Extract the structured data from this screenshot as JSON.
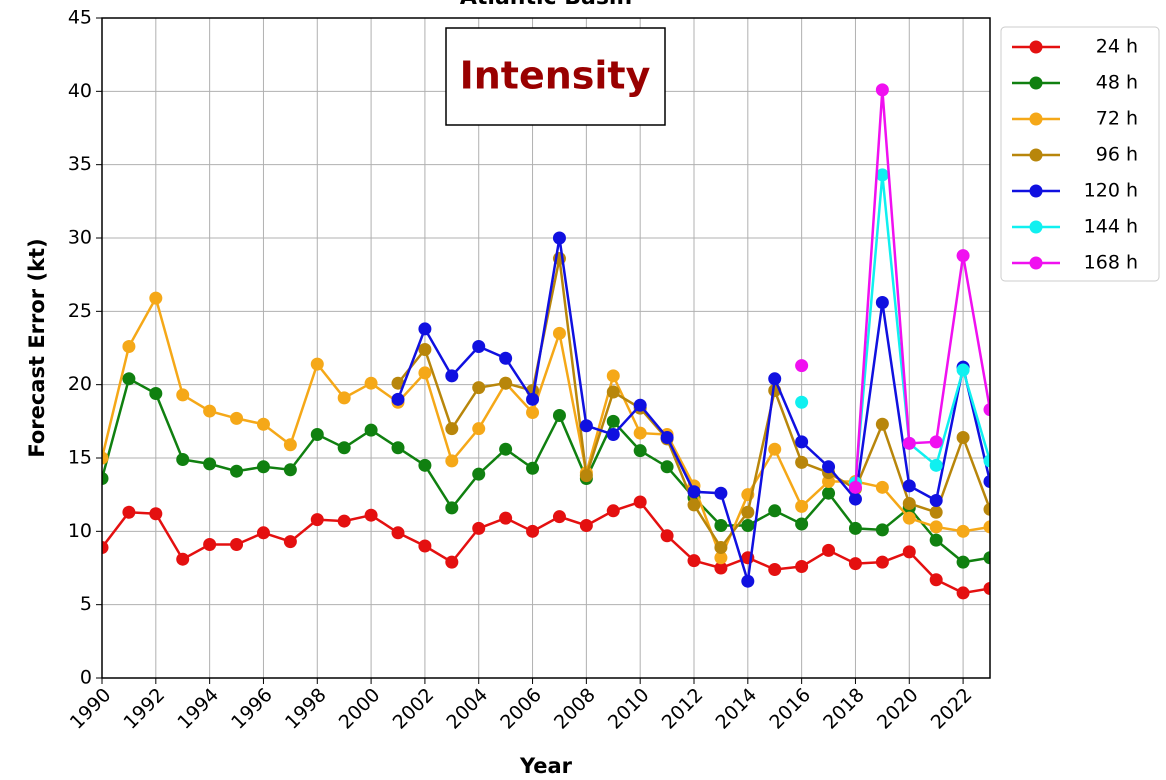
{
  "chart_data": {
    "type": "line",
    "title": "Atlantic Basin",
    "annotation": "Intensity",
    "xlabel": "Year",
    "ylabel": "Forecast Error (kt)",
    "x": [
      1990,
      1991,
      1992,
      1993,
      1994,
      1995,
      1996,
      1997,
      1998,
      1999,
      2000,
      2001,
      2002,
      2003,
      2004,
      2005,
      2006,
      2007,
      2008,
      2009,
      2010,
      2011,
      2012,
      2013,
      2014,
      2015,
      2016,
      2017,
      2018,
      2019,
      2020,
      2021,
      2022,
      2023
    ],
    "series": [
      {
        "name": "24 h",
        "color": "#e41010",
        "values": [
          8.9,
          11.3,
          11.2,
          8.1,
          9.1,
          9.1,
          9.9,
          9.3,
          10.8,
          10.7,
          11.1,
          9.9,
          9.0,
          7.9,
          10.2,
          10.9,
          10.0,
          11.0,
          10.4,
          11.4,
          12.0,
          9.7,
          8.0,
          7.5,
          8.2,
          7.4,
          7.6,
          8.7,
          7.8,
          7.9,
          8.6,
          6.7,
          5.8,
          6.1
        ]
      },
      {
        "name": "48 h",
        "color": "#108010",
        "values": [
          13.6,
          20.4,
          19.4,
          14.9,
          14.6,
          14.1,
          14.4,
          14.2,
          16.6,
          15.7,
          16.9,
          15.7,
          14.5,
          11.6,
          13.9,
          15.6,
          14.3,
          17.9,
          13.6,
          17.5,
          15.5,
          14.4,
          12.3,
          10.4,
          10.4,
          11.4,
          10.5,
          12.6,
          10.2,
          10.1,
          11.6,
          9.4,
          7.9,
          8.2
        ]
      },
      {
        "name": "72 h",
        "color": "#f5a818",
        "values": [
          15.0,
          22.6,
          25.9,
          19.3,
          18.2,
          17.7,
          17.3,
          15.9,
          21.4,
          19.1,
          20.1,
          18.8,
          20.8,
          14.8,
          17.0,
          20.1,
          18.1,
          23.5,
          14.0,
          20.6,
          16.7,
          16.6,
          13.1,
          8.2,
          12.5,
          15.6,
          11.7,
          13.4,
          13.4,
          13.0,
          10.9,
          10.3,
          10.0,
          10.3
        ]
      },
      {
        "name": "96 h",
        "color": "#b8860b",
        "values": [
          null,
          null,
          null,
          null,
          null,
          null,
          null,
          null,
          null,
          null,
          null,
          20.1,
          22.4,
          17.0,
          19.8,
          20.1,
          19.6,
          28.6,
          13.8,
          19.5,
          18.4,
          16.3,
          11.8,
          8.9,
          11.3,
          19.6,
          14.7,
          14.0,
          12.9,
          17.3,
          11.9,
          11.3,
          16.4,
          11.5
        ]
      },
      {
        "name": "120 h",
        "color": "#1010e0",
        "values": [
          null,
          null,
          null,
          null,
          null,
          null,
          null,
          null,
          null,
          null,
          null,
          19.0,
          23.8,
          20.6,
          22.6,
          21.8,
          19.0,
          30.0,
          17.2,
          16.6,
          18.6,
          16.4,
          12.7,
          12.6,
          6.6,
          20.4,
          16.1,
          14.4,
          12.2,
          25.6,
          13.1,
          12.1,
          21.2,
          13.4
        ]
      },
      {
        "name": "144 h",
        "color": "#10f0f0",
        "values": [
          null,
          null,
          null,
          null,
          null,
          null,
          null,
          null,
          null,
          null,
          null,
          null,
          null,
          null,
          null,
          null,
          null,
          null,
          null,
          null,
          null,
          null,
          null,
          null,
          null,
          null,
          18.8,
          null,
          13.3,
          34.3,
          16.0,
          14.5,
          21.0,
          14.8
        ]
      },
      {
        "name": "168 h",
        "color": "#f010f0",
        "values": [
          null,
          null,
          null,
          null,
          null,
          null,
          null,
          null,
          null,
          null,
          null,
          null,
          null,
          null,
          null,
          null,
          null,
          null,
          null,
          null,
          null,
          null,
          null,
          null,
          null,
          null,
          21.3,
          null,
          13.0,
          40.1,
          16.0,
          16.1,
          28.8,
          18.3
        ]
      }
    ],
    "xlim": [
      1990,
      2023
    ],
    "xticks": [
      1990,
      1992,
      1994,
      1996,
      1998,
      2000,
      2002,
      2004,
      2006,
      2008,
      2010,
      2012,
      2014,
      2016,
      2018,
      2020,
      2022
    ],
    "ylim": [
      0,
      45
    ],
    "yticks": [
      0,
      5,
      10,
      15,
      20,
      25,
      30,
      35,
      40,
      45
    ],
    "grid": true,
    "legend": "outside-right"
  }
}
